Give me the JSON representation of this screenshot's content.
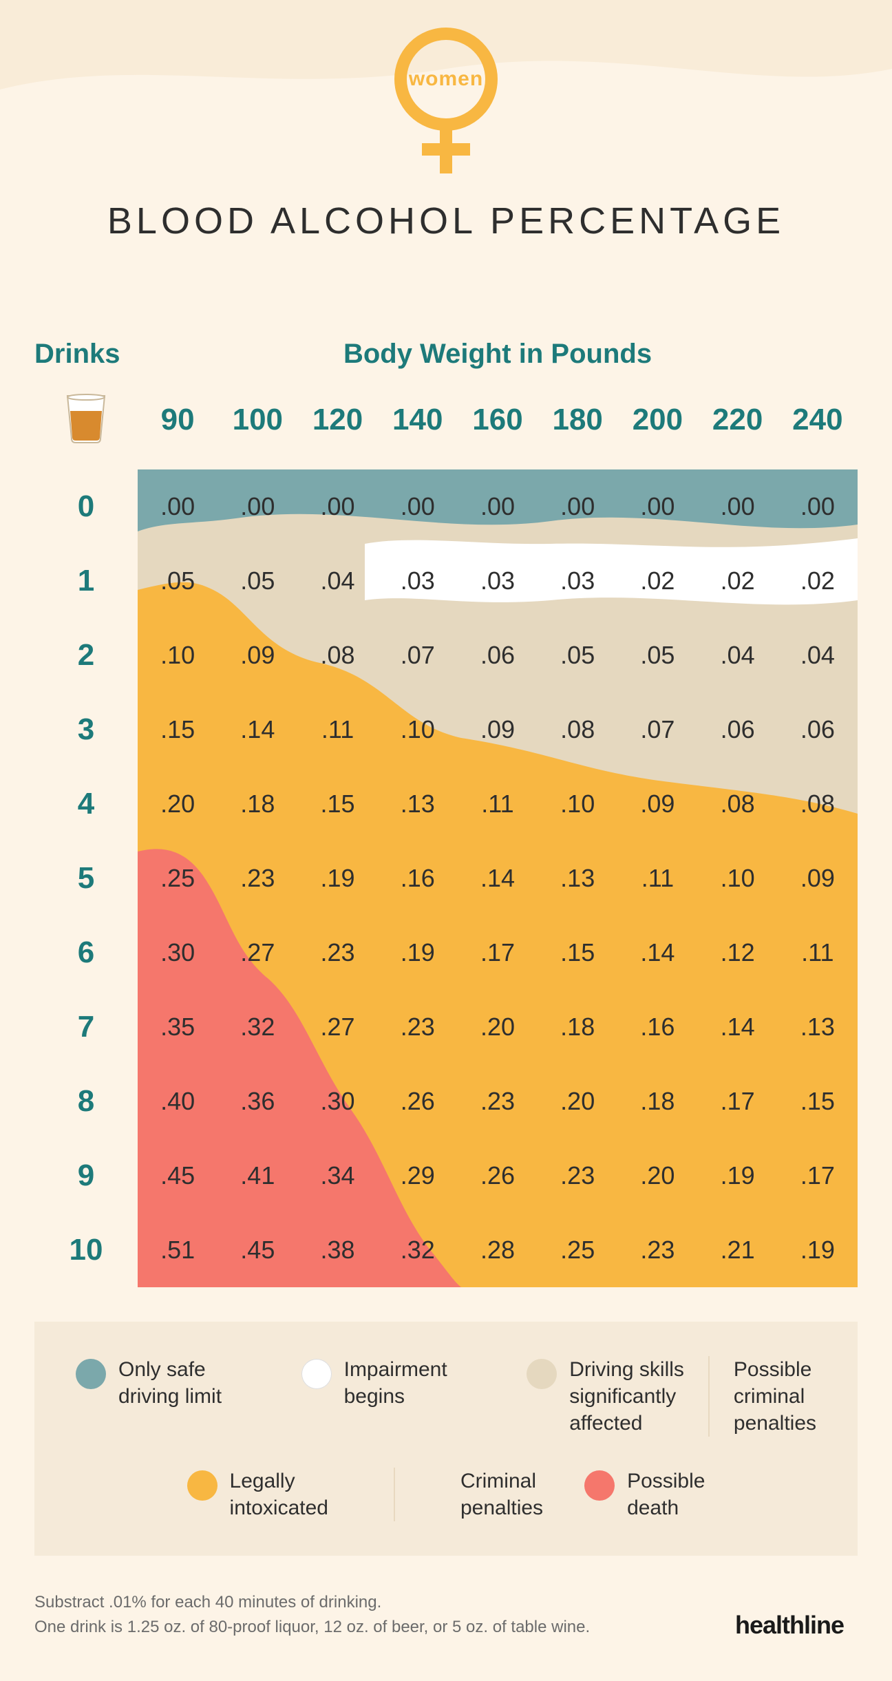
{
  "header": {
    "symbol_label": "women",
    "title": "BLOOD ALCOHOL PERCENTAGE"
  },
  "labels": {
    "drinks": "Drinks",
    "weight": "Body Weight in Pounds"
  },
  "colors": {
    "page_bg": "#fdf4e7",
    "accent": "#f8b742",
    "teal": "#1d7a7a",
    "text": "#2e2e2e",
    "zone_safe": "#7ba8ab",
    "zone_impair": "#ffffff",
    "zone_affected": "#e5d8bf",
    "zone_intox": "#f8b742",
    "zone_death": "#f5776c",
    "legend_bg": "#f5ead9",
    "legend_sep": "#e8d9c0",
    "footnote": "#6b6b6b"
  },
  "weights": [
    "90",
    "100",
    "120",
    "140",
    "160",
    "180",
    "200",
    "220",
    "240"
  ],
  "rows": [
    {
      "drinks": "0",
      "values": [
        ".00",
        ".00",
        ".00",
        ".00",
        ".00",
        ".00",
        ".00",
        ".00",
        ".00"
      ]
    },
    {
      "drinks": "1",
      "values": [
        ".05",
        ".05",
        ".04",
        ".03",
        ".03",
        ".03",
        ".02",
        ".02",
        ".02"
      ]
    },
    {
      "drinks": "2",
      "values": [
        ".10",
        ".09",
        ".08",
        ".07",
        ".06",
        ".05",
        ".05",
        ".04",
        ".04"
      ]
    },
    {
      "drinks": "3",
      "values": [
        ".15",
        ".14",
        ".11",
        ".10",
        ".09",
        ".08",
        ".07",
        ".06",
        ".06"
      ]
    },
    {
      "drinks": "4",
      "values": [
        ".20",
        ".18",
        ".15",
        ".13",
        ".11",
        ".10",
        ".09",
        ".08",
        ".08"
      ]
    },
    {
      "drinks": "5",
      "values": [
        ".25",
        ".23",
        ".19",
        ".16",
        ".14",
        ".13",
        ".11",
        ".10",
        ".09"
      ]
    },
    {
      "drinks": "6",
      "values": [
        ".30",
        ".27",
        ".23",
        ".19",
        ".17",
        ".15",
        ".14",
        ".12",
        ".11"
      ]
    },
    {
      "drinks": "7",
      "values": [
        ".35",
        ".32",
        ".27",
        ".23",
        ".20",
        ".18",
        ".16",
        ".14",
        ".13"
      ]
    },
    {
      "drinks": "8",
      "values": [
        ".40",
        ".36",
        ".30",
        ".26",
        ".23",
        ".20",
        ".18",
        ".17",
        ".15"
      ]
    },
    {
      "drinks": "9",
      "values": [
        ".45",
        ".41",
        ".34",
        ".29",
        ".26",
        ".23",
        ".20",
        ".19",
        ".17"
      ]
    },
    {
      "drinks": "10",
      "values": [
        ".51",
        ".45",
        ".38",
        ".32",
        ".28",
        ".25",
        ".23",
        ".21",
        ".19"
      ]
    }
  ],
  "legend": {
    "row1": [
      {
        "color": "#7ba8ab",
        "text": "Only safe\ndriving limit",
        "sep": false
      },
      {
        "color": "#ffffff",
        "text": "Impairment\nbegins",
        "sep": false
      },
      {
        "color": "#e5d8bf",
        "text": "Driving skills\nsignificantly\naffected",
        "sep": true,
        "after": "Possible\ncriminal\npenalties"
      }
    ],
    "row2": [
      {
        "color": "#f8b742",
        "text": "Legally\nintoxicated",
        "sep": true,
        "after": "Criminal\npenalties"
      },
      {
        "color": "#f5776c",
        "text": "Possible\ndeath",
        "sep": false
      }
    ]
  },
  "footnote": {
    "line1": "Substract .01% for each 40 minutes of drinking.",
    "line2": "One drink is 1.25 oz. of 80-proof liquor, 12 oz. of beer, or 5 oz. of table wine."
  },
  "brand": "healthline"
}
